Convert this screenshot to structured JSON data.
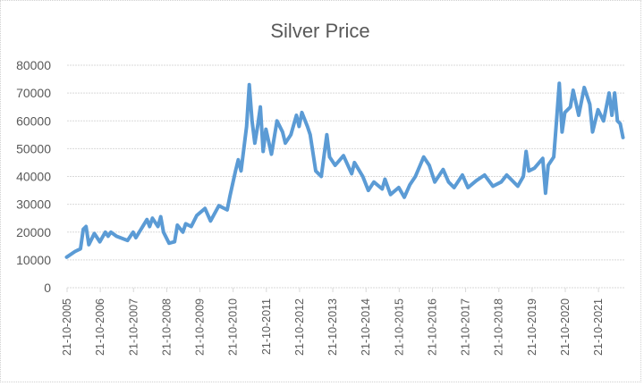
{
  "chart_data": {
    "type": "line",
    "title": "Silver Price",
    "xlabel": "",
    "ylabel": "",
    "ylim": [
      0,
      80000
    ],
    "yticks": [
      0,
      10000,
      20000,
      30000,
      40000,
      50000,
      60000,
      70000,
      80000
    ],
    "xlim": [
      "2005-10-21",
      "2022-07-31"
    ],
    "xticks": [
      "21-10-2005",
      "21-10-2006",
      "21-10-2007",
      "21-10-2008",
      "21-10-2009",
      "21-10-2010",
      "21-10-2011",
      "21-10-2012",
      "21-10-2013",
      "21-10-2014",
      "21-10-2015",
      "21-10-2016",
      "21-10-2017",
      "21-10-2018",
      "21-10-2019",
      "21-10-2020",
      "21-10-2021"
    ],
    "grid": "horizontal",
    "legend": "none",
    "color": "#5B9BD5",
    "series": [
      {
        "points": [
          [
            "2005-10",
            11000
          ],
          [
            "2006-01",
            13000
          ],
          [
            "2006-03",
            14000
          ],
          [
            "2006-04",
            21000
          ],
          [
            "2006-05",
            22000
          ],
          [
            "2006-06",
            15500
          ],
          [
            "2006-08",
            19500
          ],
          [
            "2006-10",
            16500
          ],
          [
            "2006-12",
            20000
          ],
          [
            "2007-01",
            18500
          ],
          [
            "2007-02",
            20000
          ],
          [
            "2007-04",
            18500
          ],
          [
            "2007-08",
            17000
          ],
          [
            "2007-10",
            20000
          ],
          [
            "2007-11",
            18000
          ],
          [
            "2008-03",
            24500
          ],
          [
            "2008-04",
            22000
          ],
          [
            "2008-05",
            25000
          ],
          [
            "2008-07",
            22000
          ],
          [
            "2008-08",
            25500
          ],
          [
            "2008-09",
            20000
          ],
          [
            "2008-11",
            16000
          ],
          [
            "2009-01",
            16500
          ],
          [
            "2009-02",
            22500
          ],
          [
            "2009-04",
            20000
          ],
          [
            "2009-05",
            23000
          ],
          [
            "2009-07",
            22000
          ],
          [
            "2009-09",
            26000
          ],
          [
            "2009-12",
            28500
          ],
          [
            "2010-02",
            24000
          ],
          [
            "2010-05",
            29500
          ],
          [
            "2010-08",
            28000
          ],
          [
            "2010-09",
            33000
          ],
          [
            "2010-11",
            42000
          ],
          [
            "2010-12",
            46000
          ],
          [
            "2011-01",
            42000
          ],
          [
            "2011-02",
            50000
          ],
          [
            "2011-03",
            58000
          ],
          [
            "2011-04",
            73000
          ],
          [
            "2011-05",
            60000
          ],
          [
            "2011-06",
            52000
          ],
          [
            "2011-07",
            58000
          ],
          [
            "2011-08",
            65000
          ],
          [
            "2011-09",
            49000
          ],
          [
            "2011-10",
            57000
          ],
          [
            "2011-12",
            48000
          ],
          [
            "2012-02",
            60000
          ],
          [
            "2012-04",
            56000
          ],
          [
            "2012-05",
            52000
          ],
          [
            "2012-07",
            55000
          ],
          [
            "2012-09",
            62000
          ],
          [
            "2012-10",
            58000
          ],
          [
            "2012-11",
            63000
          ],
          [
            "2013-01",
            58000
          ],
          [
            "2013-02",
            55000
          ],
          [
            "2013-04",
            42000
          ],
          [
            "2013-06",
            40000
          ],
          [
            "2013-08",
            55000
          ],
          [
            "2013-09",
            47000
          ],
          [
            "2013-11",
            44000
          ],
          [
            "2014-02",
            47500
          ],
          [
            "2014-05",
            41000
          ],
          [
            "2014-06",
            45000
          ],
          [
            "2014-09",
            40000
          ],
          [
            "2014-11",
            35000
          ],
          [
            "2015-01",
            38000
          ],
          [
            "2015-04",
            35500
          ],
          [
            "2015-05",
            39000
          ],
          [
            "2015-07",
            33500
          ],
          [
            "2015-10",
            36000
          ],
          [
            "2015-12",
            32500
          ],
          [
            "2016-02",
            37000
          ],
          [
            "2016-04",
            40000
          ],
          [
            "2016-07",
            47000
          ],
          [
            "2016-09",
            44000
          ],
          [
            "2016-11",
            38000
          ],
          [
            "2017-02",
            42500
          ],
          [
            "2017-04",
            38000
          ],
          [
            "2017-06",
            36000
          ],
          [
            "2017-09",
            40500
          ],
          [
            "2017-11",
            36000
          ],
          [
            "2018-02",
            38500
          ],
          [
            "2018-05",
            40500
          ],
          [
            "2018-08",
            36500
          ],
          [
            "2018-11",
            38000
          ],
          [
            "2019-01",
            40500
          ],
          [
            "2019-05",
            36500
          ],
          [
            "2019-07",
            40000
          ],
          [
            "2019-08",
            49000
          ],
          [
            "2019-09",
            42000
          ],
          [
            "2019-11",
            43000
          ],
          [
            "2020-02",
            46500
          ],
          [
            "2020-03",
            34000
          ],
          [
            "2020-04",
            44000
          ],
          [
            "2020-06",
            47000
          ],
          [
            "2020-07",
            60000
          ],
          [
            "2020-08",
            73500
          ],
          [
            "2020-09",
            56000
          ],
          [
            "2020-10",
            63000
          ],
          [
            "2020-12",
            65000
          ],
          [
            "2021-01",
            71000
          ],
          [
            "2021-03",
            62000
          ],
          [
            "2021-05",
            72000
          ],
          [
            "2021-07",
            66000
          ],
          [
            "2021-08",
            56000
          ],
          [
            "2021-10",
            64000
          ],
          [
            "2021-12",
            60000
          ],
          [
            "2022-02",
            70000
          ],
          [
            "2022-03",
            62000
          ],
          [
            "2022-04",
            70000
          ],
          [
            "2022-05",
            60000
          ],
          [
            "2022-06",
            59000
          ],
          [
            "2022-07",
            54000
          ]
        ]
      }
    ]
  }
}
